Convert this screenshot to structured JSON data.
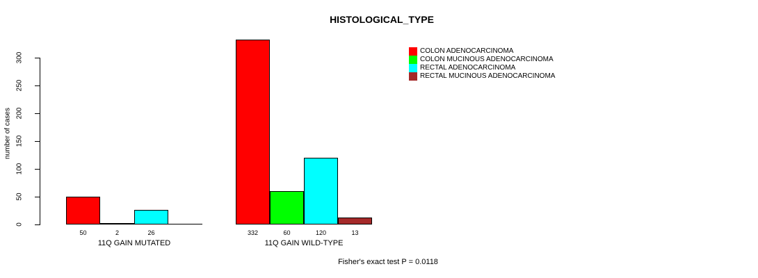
{
  "title": "HISTOLOGICAL_TYPE",
  "footnote": "Fisher's exact test P = 0.0118",
  "chart_data": {
    "type": "bar",
    "title": "HISTOLOGICAL_TYPE",
    "xlabel": "",
    "ylabel": "number of cases",
    "ylim": [
      0,
      332
    ],
    "yticks": [
      0,
      50,
      100,
      150,
      200,
      250,
      300
    ],
    "grid": false,
    "legend_position": "right-of-plot",
    "bar_border_color": "#000000",
    "categories": [
      "11Q GAIN MUTATED",
      "11Q GAIN WILD-TYPE"
    ],
    "series": [
      {
        "name": "COLON ADENOCARCINOMA",
        "color": "#FF0000",
        "values": [
          50,
          332
        ]
      },
      {
        "name": "COLON MUCINOUS ADENOCARCINOMA",
        "color": "#00FF00",
        "values": [
          2,
          60
        ]
      },
      {
        "name": "RECTAL ADENOCARCINOMA",
        "color": "#00FFFF",
        "values": [
          26,
          120
        ]
      },
      {
        "name": "RECTAL MUCINOUS ADENOCARCINOMA",
        "color": "#A52A2A",
        "values": [
          0,
          13
        ]
      }
    ],
    "groups": [
      {
        "label": "11Q GAIN MUTATED",
        "value_labels": [
          "50",
          "2",
          "26",
          ""
        ]
      },
      {
        "label": "11Q GAIN WILD-TYPE",
        "value_labels": [
          "332",
          "60",
          "120",
          "13"
        ]
      }
    ],
    "annotation": "Fisher's exact test P = 0.0118"
  }
}
